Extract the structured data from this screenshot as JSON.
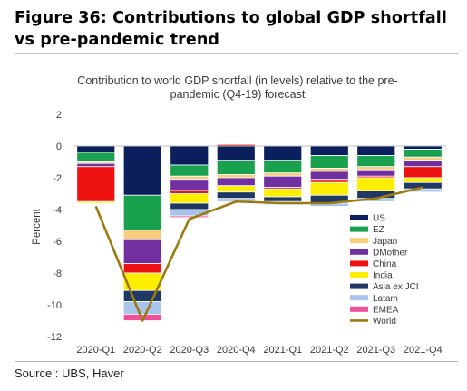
{
  "figure_title": "Figure 36: Contributions to global GDP shortfall vs pre-pandemic trend",
  "source": "Source : UBS, Haver",
  "chart_data": {
    "type": "bar",
    "stacked": true,
    "title": "Contribution to world GDP shortfall (in levels) relative to the pre-pandemic (Q4-19) forecast",
    "title_lines": [
      "Contribution to world GDP shortfall (in levels) relative to the pre-",
      "pandemic (Q4-19) forecast"
    ],
    "xlabel": "",
    "ylabel": "Percent",
    "ylim": [
      -12,
      2
    ],
    "yticks": [
      2,
      0,
      -2,
      -4,
      -6,
      -8,
      -10,
      -12
    ],
    "grid": false,
    "legend_position": "bottom-right",
    "categories": [
      "2020-Q1",
      "2020-Q2",
      "2020-Q3",
      "2020-Q4",
      "2021-Q1",
      "2021-Q2",
      "2021-Q3",
      "2021-Q4"
    ],
    "series": [
      {
        "name": "US",
        "kind": "bar",
        "color": "#0a1f5c",
        "values": [
          -0.4,
          -3.1,
          -1.2,
          -0.9,
          -0.9,
          -0.6,
          -0.6,
          -0.2
        ]
      },
      {
        "name": "EZ",
        "kind": "bar",
        "color": "#19a150",
        "values": [
          -0.6,
          -2.2,
          -0.7,
          -0.9,
          -0.8,
          -0.8,
          -0.7,
          -0.5
        ]
      },
      {
        "name": "Japan",
        "kind": "bar",
        "color": "#f8cd7e",
        "values": [
          -0.1,
          -0.6,
          -0.2,
          -0.2,
          -0.2,
          -0.2,
          -0.2,
          -0.2
        ]
      },
      {
        "name": "DMother",
        "kind": "bar",
        "color": "#7030a0",
        "values": [
          -0.2,
          -1.5,
          -0.7,
          -0.5,
          -0.7,
          -0.5,
          -0.4,
          -0.4
        ]
      },
      {
        "name": "China",
        "kind": "bar",
        "color": "#ee1111",
        "values": [
          -2.2,
          -0.6,
          -0.2,
          0.1,
          -0.1,
          -0.2,
          -0.1,
          -0.7
        ]
      },
      {
        "name": "India",
        "kind": "bar",
        "color": "#ffee00",
        "values": [
          -0.1,
          -1.1,
          -0.6,
          -0.4,
          -0.5,
          -0.8,
          -0.8,
          -0.3
        ]
      },
      {
        "name": "Asia ex JCI",
        "kind": "bar",
        "color": "#1f3864",
        "values": [
          0.0,
          -0.7,
          -0.4,
          -0.4,
          -0.3,
          -0.5,
          -0.5,
          -0.4
        ]
      },
      {
        "name": "Latam",
        "kind": "bar",
        "color": "#a9c4eb",
        "values": [
          0.0,
          -0.8,
          -0.4,
          -0.2,
          -0.2,
          -0.2,
          -0.2,
          -0.2
        ]
      },
      {
        "name": "EMEA",
        "kind": "bar",
        "color": "#f0509a",
        "values": [
          0.0,
          -0.4,
          -0.1,
          0.0,
          0.0,
          0.0,
          0.0,
          0.0
        ]
      },
      {
        "name": "World",
        "kind": "line",
        "color": "#9c7a12",
        "values": [
          -3.8,
          -11.0,
          -4.6,
          -3.5,
          -3.6,
          -3.6,
          -3.3,
          -2.6
        ]
      }
    ]
  }
}
